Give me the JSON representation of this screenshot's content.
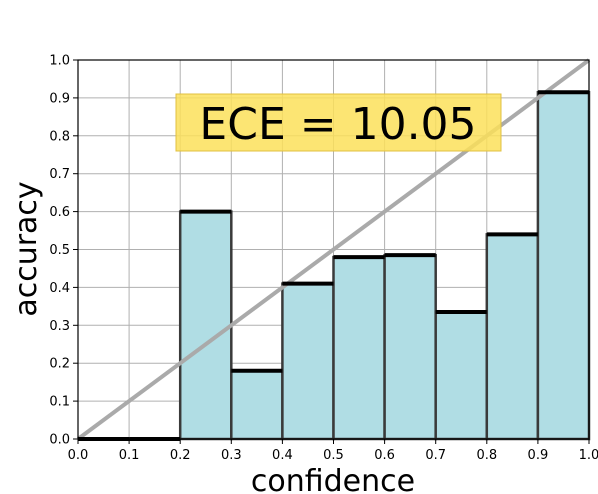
{
  "chart_data": {
    "type": "bar",
    "xlabel": "confidence",
    "ylabel": "accuracy",
    "xlim": [
      0,
      1
    ],
    "ylim": [
      0,
      1
    ],
    "grid": true,
    "xticks": [
      "0.0",
      "0.1",
      "0.2",
      "0.3",
      "0.4",
      "0.5",
      "0.6",
      "0.7",
      "0.8",
      "0.9",
      "1.0"
    ],
    "yticks": [
      "0.0",
      "0.1",
      "0.2",
      "0.3",
      "0.4",
      "0.5",
      "0.6",
      "0.7",
      "0.8",
      "0.9",
      "1.0"
    ],
    "bins": [
      {
        "start": 0.0,
        "end": 0.1,
        "value": 0.0
      },
      {
        "start": 0.1,
        "end": 0.2,
        "value": 0.0
      },
      {
        "start": 0.2,
        "end": 0.3,
        "value": 0.6
      },
      {
        "start": 0.3,
        "end": 0.4,
        "value": 0.18
      },
      {
        "start": 0.4,
        "end": 0.5,
        "value": 0.41
      },
      {
        "start": 0.5,
        "end": 0.6,
        "value": 0.48
      },
      {
        "start": 0.6,
        "end": 0.7,
        "value": 0.485
      },
      {
        "start": 0.7,
        "end": 0.8,
        "value": 0.335
      },
      {
        "start": 0.8,
        "end": 0.9,
        "value": 0.54
      },
      {
        "start": 0.9,
        "end": 1.0,
        "value": 0.915
      }
    ],
    "reference_line": {
      "from": [
        0,
        0
      ],
      "to": [
        1,
        1
      ]
    },
    "annotation": "ECE = 10.05",
    "colors": {
      "bar_fill": "#b0dde4",
      "bar_edge": "#000000",
      "diagonal": "#aaaaaa",
      "annotation_bg": "#fce05a",
      "annotation_border": "#e0c040",
      "grid": "#b0b0b0"
    }
  }
}
